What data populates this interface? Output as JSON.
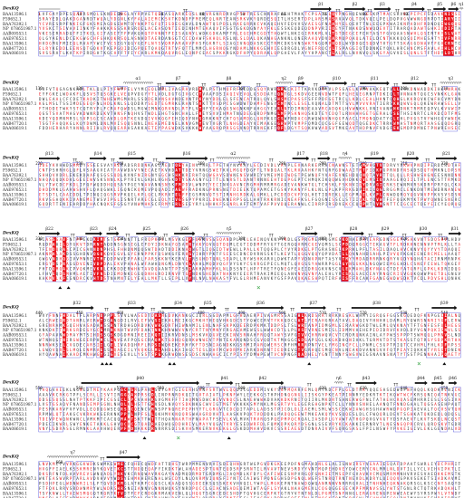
{
  "title_name": "DexKQ",
  "sequence_names": [
    "BAA13596.1",
    "P39652.1",
    "BAA76392.1",
    "NP_078651987.1",
    "AAB09553.1",
    "AAE97653.1",
    "BAA13596.1",
    "AAB47720.1",
    "BAA08619.1"
  ],
  "colors": {
    "identical_bg": "#e8141c",
    "similar_text": "#e8141c",
    "box": "#3838d8",
    "helix_coil": "#888888",
    "marker": "#111111",
    "green_marker": "#4fae5a"
  },
  "blocks": [
    {
      "ruler": [
        "1",
        "10",
        "20",
        "30",
        "40",
        "50",
        "60",
        "70",
        "80",
        "90",
        "100"
      ],
      "ss": [
        {
          "kind": "coil",
          "label": ""
        },
        {
          "kind": "strand",
          "label": "β1"
        },
        {
          "kind": "strand",
          "label": "β2"
        },
        {
          "kind": "strand",
          "label": "β3"
        },
        {
          "kind": "strand",
          "label": "β4"
        },
        {
          "kind": "strand",
          "label": "β5"
        },
        {
          "kind": "strand",
          "label": "β6"
        },
        {
          "kind": "helix",
          "label": "η1"
        }
      ]
    },
    {
      "ruler": [
        "110",
        "120",
        "130",
        "140",
        "150",
        "160",
        "170",
        "180",
        "190",
        "200",
        "210"
      ],
      "ss": [
        {
          "kind": "helix",
          "label": "α1"
        },
        {
          "kind": "strand",
          "label": "β7"
        },
        {
          "kind": "strand",
          "label": "β8"
        },
        {
          "kind": "helix",
          "label": "η2"
        },
        {
          "kind": "strand",
          "label": "β9"
        },
        {
          "kind": "strand",
          "label": "β10"
        },
        {
          "kind": "strand",
          "label": "β11"
        },
        {
          "kind": "strand",
          "label": "β12"
        },
        {
          "kind": "helix",
          "label": "η3"
        }
      ]
    },
    {
      "ruler": [
        "220",
        "230",
        "240",
        "250",
        "260",
        "270",
        "280",
        "290",
        "300",
        "310",
        "320"
      ],
      "ss": [
        {
          "kind": "strand",
          "label": "β13"
        },
        {
          "kind": "strand",
          "label": "β14"
        },
        {
          "kind": "strand",
          "label": "β15"
        },
        {
          "kind": "strand",
          "label": "β16"
        },
        {
          "kind": "helix",
          "label": "α2"
        },
        {
          "kind": "strand",
          "label": "β17"
        },
        {
          "kind": "strand",
          "label": "β18"
        },
        {
          "kind": "helix",
          "label": "η4"
        },
        {
          "kind": "strand",
          "label": "β19"
        },
        {
          "kind": "strand",
          "label": "β20"
        },
        {
          "kind": "strand",
          "label": "β21"
        }
      ]
    },
    {
      "ruler": [
        "330",
        "340",
        "350",
        "360",
        "370",
        "380",
        "390",
        "400",
        "410",
        "420",
        "430"
      ],
      "ss": [
        {
          "kind": "strand",
          "label": "β22"
        },
        {
          "kind": "strand",
          "label": "β23"
        },
        {
          "kind": "strand",
          "label": "β24"
        },
        {
          "kind": "strand",
          "label": "β25"
        },
        {
          "kind": "strand",
          "label": "β26"
        },
        {
          "kind": "helix",
          "label": "η5"
        },
        {
          "kind": "strand",
          "label": "β27"
        },
        {
          "kind": "strand",
          "label": "β28"
        },
        {
          "kind": "strand",
          "label": "β29"
        },
        {
          "kind": "strand",
          "label": "β30"
        },
        {
          "kind": "strand",
          "label": "β31"
        }
      ]
    },
    {
      "ruler": [
        "440",
        "450",
        "460",
        "470",
        "480",
        "490",
        "500",
        "510",
        "520",
        "530",
        "540"
      ],
      "ss": [
        {
          "kind": "strand",
          "label": "β32"
        },
        {
          "kind": "strand",
          "label": "β33"
        },
        {
          "kind": "strand",
          "label": "β34"
        },
        {
          "kind": "strand",
          "label": "β35"
        },
        {
          "kind": "strand",
          "label": "β36"
        },
        {
          "kind": "strand",
          "label": "β37"
        },
        {
          "kind": "strand",
          "label": "β38"
        },
        {
          "kind": "strand",
          "label": "β39"
        }
      ]
    },
    {
      "ruler": [
        "550",
        "560",
        "570",
        "580",
        "590",
        "600",
        "610",
        "620",
        "630",
        "640",
        "650"
      ],
      "ss": [
        {
          "kind": "strand",
          "label": "β40"
        },
        {
          "kind": "strand",
          "label": "β41"
        },
        {
          "kind": "strand",
          "label": "β42"
        },
        {
          "kind": "helix",
          "label": "η6"
        },
        {
          "kind": "strand",
          "label": "β43"
        },
        {
          "kind": "strand",
          "label": "β44"
        },
        {
          "kind": "strand",
          "label": "β45"
        },
        {
          "kind": "strand",
          "label": "β46"
        }
      ]
    },
    {
      "ruler": [
        "660"
      ],
      "ss": [
        {
          "kind": "helix",
          "label": "η7"
        },
        {
          "kind": "strand",
          "label": "β47"
        }
      ]
    }
  ]
}
